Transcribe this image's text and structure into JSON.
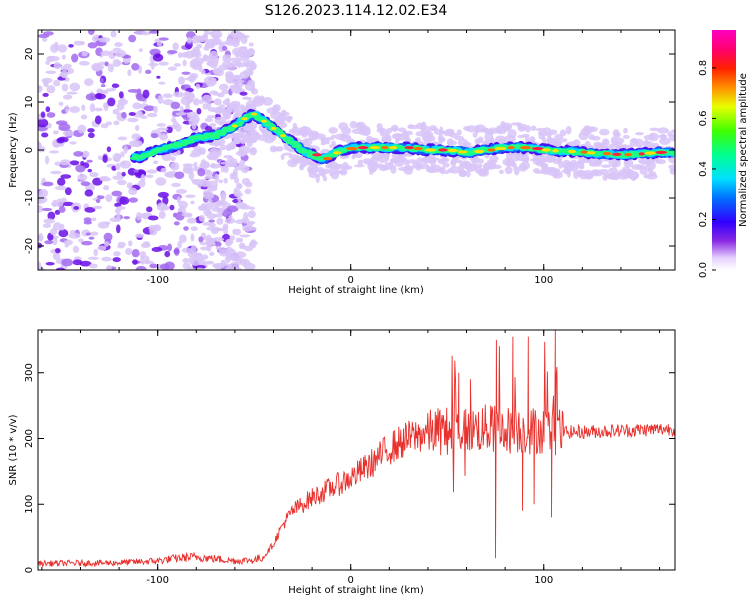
{
  "title": "S126.2023.114.12.02.E34",
  "chart_data": [
    {
      "type": "heatmap",
      "xlabel": "Height of straight line (km)",
      "ylabel": "Frequency (Hz)",
      "xlim": [
        -162,
        168
      ],
      "ylim": [
        -25,
        25
      ],
      "xticks": [
        -100,
        0,
        100
      ],
      "yticks": [
        -20,
        -10,
        0,
        10,
        20
      ],
      "colorbar": {
        "label": "Normalized spectral amplitude",
        "range": [
          0,
          0.95
        ],
        "ticks": [
          0.0,
          0.2,
          0.4,
          0.6,
          0.8
        ],
        "colormap": "hsv-reversed (white/lavender low, violet, blue, cyan, green, yellow, orange, red, magenta high)"
      },
      "ridge": {
        "x": [
          -110,
          -100,
          -90,
          -80,
          -70,
          -60,
          -55,
          -50,
          -45,
          -40,
          -35,
          -30,
          -25,
          -20,
          -15,
          -10,
          -5,
          0,
          10,
          20,
          30,
          40,
          50,
          60,
          70,
          80,
          90,
          100,
          120,
          140,
          160,
          168
        ],
        "y": [
          -1.5,
          0,
          1,
          2.5,
          3,
          5,
          6.5,
          7.5,
          6,
          4.5,
          3,
          1.5,
          0,
          -1,
          -2,
          -1,
          0,
          0.5,
          0.5,
          0.5,
          0.5,
          0,
          0,
          -0.5,
          0,
          0.5,
          0.5,
          0,
          -0.5,
          -1,
          -0.5,
          -0.5
        ]
      }
    },
    {
      "type": "line",
      "xlabel": "Height of straight line (km)",
      "ylabel": "SNR (10 * v/v)",
      "xlim": [
        -162,
        168
      ],
      "ylim": [
        0,
        365
      ],
      "xticks": [
        -100,
        0,
        100
      ],
      "yticks": [
        0,
        100,
        200,
        300
      ],
      "color": "#e8302c",
      "envelope": {
        "x": [
          -162,
          -120,
          -100,
          -90,
          -80,
          -60,
          -50,
          -45,
          -40,
          -35,
          -30,
          -20,
          -10,
          0,
          10,
          20,
          30,
          40,
          50,
          60,
          70,
          80,
          90,
          100,
          108,
          120,
          140,
          168
        ],
        "y": [
          10,
          11,
          14,
          18,
          20,
          14,
          15,
          20,
          40,
          70,
          90,
          110,
          125,
          140,
          160,
          185,
          200,
          210,
          212,
          215,
          215,
          213,
          212,
          213,
          210,
          210,
          212,
          215
        ]
      },
      "spikes": [
        {
          "x": 75,
          "y": 18
        },
        {
          "x": 75.5,
          "y": 350
        },
        {
          "x": 84,
          "y": 355
        },
        {
          "x": 89,
          "y": 90
        },
        {
          "x": 92,
          "y": 355
        },
        {
          "x": 95,
          "y": 100
        },
        {
          "x": 104,
          "y": 80
        },
        {
          "x": 106,
          "y": 365
        },
        {
          "x": 56,
          "y": 300
        },
        {
          "x": 62,
          "y": 290
        }
      ]
    }
  ]
}
